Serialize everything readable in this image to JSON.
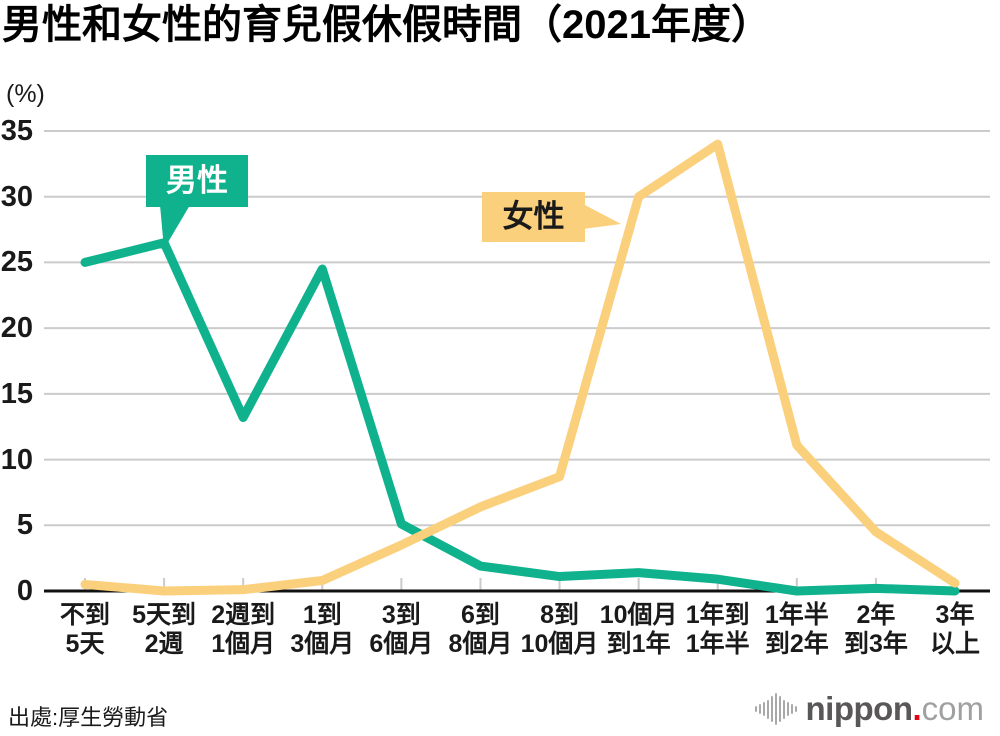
{
  "title": "男性和女性的育兒假休假時間（2021年度）",
  "unit_label": "(%)",
  "source": "出處:厚生勞動省",
  "logo": {
    "name": "nippon",
    "dot": ".",
    "tld": "com"
  },
  "colors": {
    "grid": "#cbcbcb",
    "axis": "#111111",
    "men": "#10b28e",
    "women": "#fbd07c"
  },
  "chart_data": {
    "type": "line",
    "title": "男性和女性的育兒假休假時間（2021年度）",
    "xlabel": "",
    "ylabel": "(%)",
    "ylim": [
      0,
      35
    ],
    "yticks": [
      0,
      5,
      10,
      15,
      20,
      25,
      30,
      35
    ],
    "grid": true,
    "legend_position": "callouts-on-plot",
    "categories": [
      [
        "不到",
        "5天"
      ],
      [
        "5天到",
        "2週"
      ],
      [
        "2週到",
        "1個月"
      ],
      [
        "1到",
        "3個月"
      ],
      [
        "3到",
        "6個月"
      ],
      [
        "6到",
        "8個月"
      ],
      [
        "8到",
        "10個月"
      ],
      [
        "10個月",
        "到1年"
      ],
      [
        "1年到",
        "1年半"
      ],
      [
        "1年半",
        "到2年"
      ],
      [
        "2年",
        "到3年"
      ],
      [
        "3年",
        "以上"
      ]
    ],
    "series": [
      {
        "name": "男性",
        "color": "#10b28e",
        "values": [
          25.0,
          26.5,
          13.2,
          24.5,
          5.1,
          1.9,
          1.1,
          1.4,
          0.9,
          0.0,
          0.2,
          0.0
        ]
      },
      {
        "name": "女性",
        "color": "#fbd07c",
        "values": [
          0.5,
          0.0,
          0.1,
          0.8,
          3.5,
          6.4,
          8.7,
          30.0,
          34.0,
          11.1,
          4.5,
          0.6
        ]
      }
    ]
  }
}
